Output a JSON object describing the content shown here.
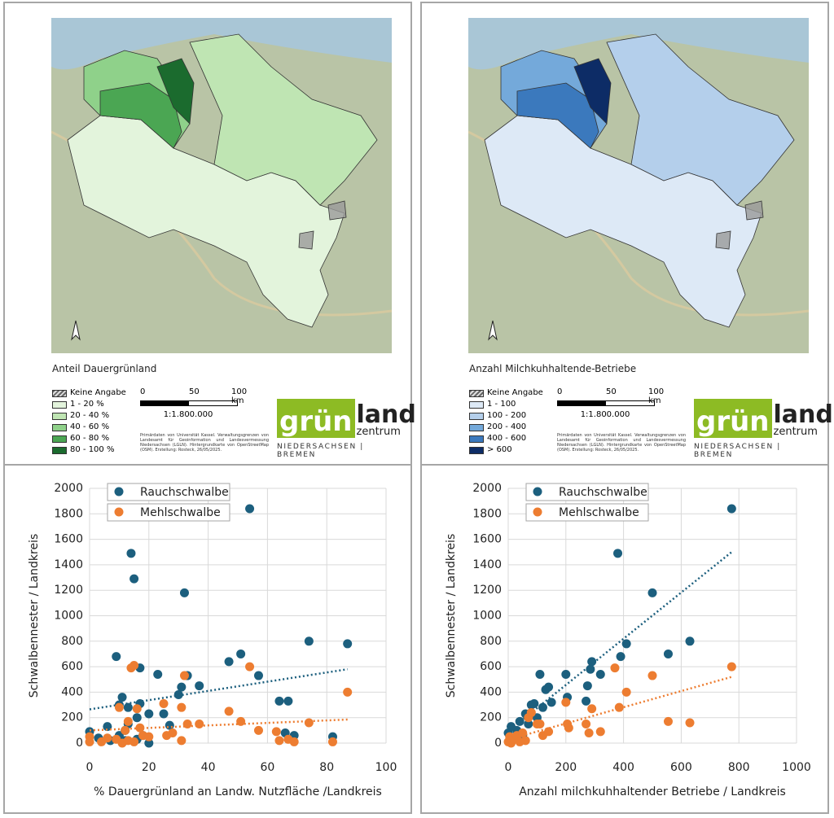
{
  "maps": [
    {
      "legend_title": "Anteil Dauergrünland",
      "legend_items": [
        {
          "label": "Keine Angabe",
          "color": "#9a9a9a"
        },
        {
          "label": "1 - 20 %",
          "color": "#e3f4dc"
        },
        {
          "label": "20 - 40 %",
          "color": "#bfe5b3"
        },
        {
          "label": "40 - 60 %",
          "color": "#8fd18a"
        },
        {
          "label": "60 - 80 %",
          "color": "#4ba653"
        },
        {
          "label": "80 - 100 %",
          "color": "#1b6b2e"
        }
      ],
      "scale_labels": [
        "0",
        "50",
        "100 km"
      ],
      "scale_ratio": "1:1.800.000",
      "credits": "Primärdaten von Universität Kassel. Verwaltungsgrenzen von Landesamt für Geoinformation und Landesvermessung Niedersachsen (LGLN). Hintergrundkarte von OpenStreetMap (OSM). Erstellung: Rosteck, 26/05/2025.",
      "logo": {
        "word1": "grün",
        "word2": "land",
        "word3": "zentrum",
        "tagline": "NIEDERSACHSEN | BREMEN"
      }
    },
    {
      "legend_title": "Anzahl Milchkuhhaltende-Betriebe",
      "legend_items": [
        {
          "label": "Keine Angabe",
          "color": "#9a9a9a"
        },
        {
          "label": "1 - 100",
          "color": "#dde9f6"
        },
        {
          "label": "100 - 200",
          "color": "#b4cfeb"
        },
        {
          "label": "200 - 400",
          "color": "#74a9da"
        },
        {
          "label": "400 - 600",
          "color": "#3b79bd"
        },
        {
          "label": "> 600",
          "color": "#0d2c66"
        }
      ],
      "scale_labels": [
        "0",
        "50",
        "100 km"
      ],
      "scale_ratio": "1:1.800.000",
      "credits": "Primärdaten von Universität Kassel. Verwaltungsgrenzen von Landesamt für Geoinformation und Landesvermessung Niedersachsen (LGLN). Hintergrundkarte von OpenStreetMap (OSM). Erstellung: Rosteck, 26/05/2025.",
      "logo": {
        "word1": "grün",
        "word2": "land",
        "word3": "zentrum",
        "tagline": "NIEDERSACHSEN | BREMEN"
      }
    }
  ],
  "chart_data": [
    {
      "type": "scatter",
      "x_label": "% Dauergrünland an Landw. Nutzfläche /Landkreis",
      "y_label": "Schwalbennester / Landkreis",
      "xlim": [
        0,
        100
      ],
      "xticks": [
        0,
        20,
        40,
        60,
        80,
        100
      ],
      "ylim": [
        0,
        2000
      ],
      "yticks": [
        0,
        200,
        400,
        600,
        800,
        1000,
        1200,
        1400,
        1600,
        1800,
        2000
      ],
      "grid": true,
      "legend": "upper-left",
      "series": [
        {
          "name": "Rauchschwalbe",
          "color": "#1c5f7e",
          "x": [
            0,
            3,
            6,
            9,
            10,
            11,
            12,
            13,
            14,
            15,
            16,
            17,
            17,
            20,
            23,
            25,
            27,
            30,
            31,
            32,
            33,
            37,
            47,
            51,
            54,
            57,
            64,
            67,
            66,
            69,
            74,
            82,
            87,
            13,
            16,
            18,
            10,
            7,
            12,
            20
          ],
          "values": [
            90,
            40,
            130,
            680,
            300,
            360,
            100,
            150,
            1490,
            1290,
            200,
            590,
            310,
            230,
            540,
            230,
            140,
            380,
            440,
            1180,
            530,
            450,
            640,
            700,
            1840,
            530,
            330,
            330,
            80,
            60,
            800,
            50,
            780,
            280,
            30,
            60,
            60,
            20,
            20,
            0
          ],
          "trend": {
            "x": [
              0,
              87
            ],
            "values": [
              265,
              580
            ]
          }
        },
        {
          "name": "Mehlschwalbe",
          "color": "#ed7d31",
          "x": [
            0,
            0,
            4,
            6,
            9,
            10,
            12,
            13,
            14,
            15,
            16,
            17,
            15,
            18,
            20,
            25,
            26,
            28,
            31,
            32,
            31,
            33,
            37,
            47,
            51,
            54,
            57,
            63,
            64,
            67,
            69,
            74,
            82,
            87,
            11,
            13
          ],
          "values": [
            50,
            10,
            10,
            40,
            30,
            280,
            100,
            170,
            590,
            610,
            270,
            120,
            10,
            60,
            50,
            310,
            60,
            80,
            280,
            530,
            20,
            150,
            150,
            250,
            170,
            600,
            100,
            90,
            20,
            30,
            10,
            160,
            10,
            400,
            0,
            20
          ],
          "trend": {
            "x": [
              0,
              87
            ],
            "values": [
              100,
              185
            ]
          }
        }
      ]
    },
    {
      "type": "scatter",
      "x_label": "Anzahl milchkuhhaltender Betriebe / Landkreis",
      "y_label": "Schwalbennester / Landkreis",
      "xlim": [
        0,
        1000
      ],
      "xticks": [
        0,
        200,
        400,
        600,
        800,
        1000
      ],
      "ylim": [
        0,
        2000
      ],
      "yticks": [
        0,
        200,
        400,
        600,
        800,
        1000,
        1200,
        1400,
        1600,
        1800,
        2000
      ],
      "grid": true,
      "legend": "upper-left",
      "series": [
        {
          "name": "Rauchschwalbe",
          "color": "#1c5f7e",
          "x": [
            0,
            10,
            20,
            30,
            40,
            50,
            70,
            80,
            90,
            100,
            110,
            120,
            130,
            140,
            200,
            205,
            270,
            275,
            285,
            290,
            320,
            380,
            390,
            410,
            500,
            555,
            630,
            775,
            60,
            150
          ],
          "values": [
            80,
            130,
            40,
            100,
            170,
            60,
            150,
            300,
            310,
            200,
            540,
            280,
            420,
            440,
            540,
            360,
            330,
            450,
            580,
            640,
            540,
            1490,
            680,
            780,
            1180,
            700,
            800,
            1840,
            230,
            320
          ],
          "trend": {
            "x": [
              20,
              775
            ],
            "values": [
              130,
              1500
            ]
          }
        },
        {
          "name": "Mehlschwalbe",
          "color": "#ed7d31",
          "x": [
            0,
            5,
            10,
            20,
            30,
            40,
            50,
            60,
            70,
            80,
            100,
            110,
            120,
            140,
            200,
            205,
            210,
            270,
            280,
            290,
            320,
            370,
            385,
            410,
            500,
            555,
            630,
            775
          ],
          "values": [
            10,
            50,
            0,
            30,
            60,
            10,
            80,
            20,
            200,
            240,
            150,
            150,
            60,
            90,
            320,
            150,
            120,
            150,
            80,
            270,
            90,
            590,
            280,
            400,
            530,
            170,
            160,
            600
          ],
          "trend": {
            "x": [
              20,
              775
            ],
            "values": [
              40,
              520
            ]
          }
        }
      ]
    }
  ]
}
